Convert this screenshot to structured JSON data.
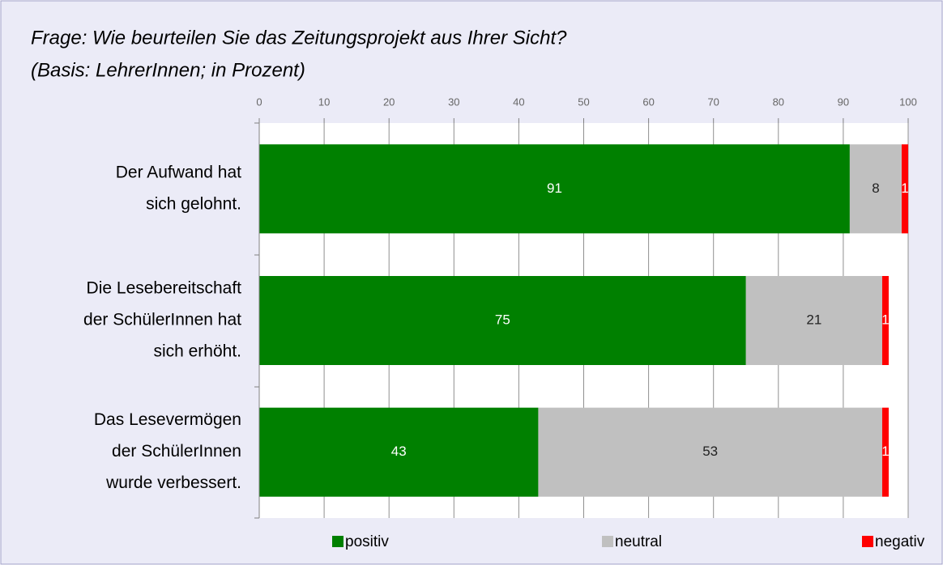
{
  "chart_data": {
    "type": "stacked-bar-horizontal",
    "title": [
      "Frage: Wie beurteilen Sie das Zeitungsprojekt aus Ihrer Sicht?",
      "(Basis: LehrerInnen; in Prozent)"
    ],
    "categories": [
      [
        "Der Aufwand hat",
        "sich gelohnt."
      ],
      [
        "Die Lesebereitschaft",
        "der SchülerInnen hat",
        "sich erhöht."
      ],
      [
        "Das Lesevermögen",
        "der SchülerInnen",
        "wurde verbessert."
      ]
    ],
    "series": [
      {
        "name": "positiv",
        "color": "#008000",
        "label_color": "#ffffff",
        "values": [
          91,
          75,
          43
        ]
      },
      {
        "name": "neutral",
        "color": "#c0c0c0",
        "label_color": "#222222",
        "values": [
          8,
          21,
          53
        ]
      },
      {
        "name": "negativ",
        "color": "#ff0000",
        "label_color": "#ffffff",
        "values": [
          1,
          1,
          1
        ]
      }
    ],
    "xlim": [
      0,
      100
    ],
    "xticks": [
      0,
      10,
      20,
      30,
      40,
      50,
      60,
      70,
      80,
      90,
      100
    ],
    "grid": true,
    "legend": "bottom"
  }
}
